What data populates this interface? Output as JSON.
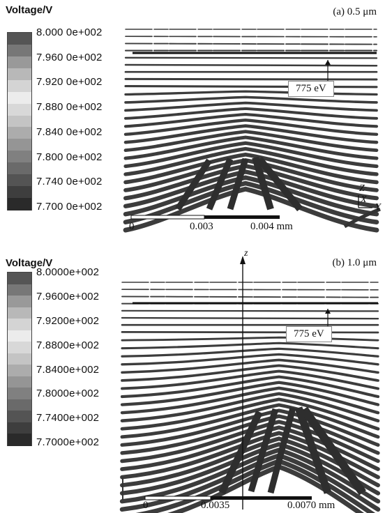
{
  "panel_a": {
    "legend_title": "Voltage/V",
    "ticks": [
      "8.000 0e+002",
      "7.960 0e+002",
      "7.920 0e+002",
      "7.880 0e+002",
      "7.840 0e+002",
      "7.800 0e+002",
      "7.740 0e+002",
      "7.700 0e+002"
    ],
    "label": "(a) 0.5 μm",
    "annotation": "775 eV",
    "scale": {
      "zero": "0",
      "mid": "0.003",
      "end": "0.004 mm"
    },
    "axes_triad": {
      "z": "Z",
      "x": "X",
      "y": "Y"
    }
  },
  "panel_b": {
    "legend_title": "Voltage/V",
    "ticks": [
      "8.0000e+002",
      "7.9600e+002",
      "7.9200e+002",
      "7.8800e+002",
      "7.8400e+002",
      "7.8000e+002",
      "7.7400e+002",
      "7.7000e+002"
    ],
    "label": "(b) 1.0 μm",
    "annotation": "775 eV",
    "axis_z": "z",
    "scale": {
      "zero": "0",
      "mid": "0.0035",
      "end": "0.0070 mm"
    }
  },
  "colors": {
    "cbar_top": "#555555",
    "cbar_mid": "#e6e6e6",
    "cbar_bottom": "#222222",
    "contour": "#3c3c3c"
  }
}
